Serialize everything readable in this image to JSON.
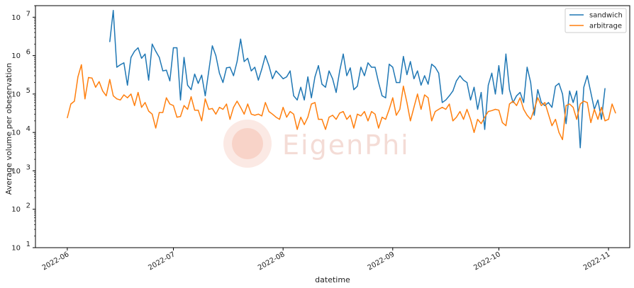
{
  "chart_data": {
    "type": "line",
    "title": "",
    "xlabel": "datetime",
    "ylabel": "Average volume per obeservation",
    "y_scale": "log",
    "xlim": [
      "2022-05-23",
      "2022-11-07"
    ],
    "ylim": [
      10,
      20000000
    ],
    "x_ticks": [
      {
        "date": "2022-06-01",
        "label": "2022-06"
      },
      {
        "date": "2022-07-01",
        "label": "2022-07"
      },
      {
        "date": "2022-08-01",
        "label": "2022-08"
      },
      {
        "date": "2022-09-01",
        "label": "2022-09"
      },
      {
        "date": "2022-10-01",
        "label": "2022-10"
      },
      {
        "date": "2022-11-01",
        "label": "2022-11"
      }
    ],
    "y_ticks": [
      {
        "value": 10,
        "base": "10",
        "exp": "1"
      },
      {
        "value": 100,
        "base": "10",
        "exp": "2"
      },
      {
        "value": 1000,
        "base": "10",
        "exp": "3"
      },
      {
        "value": 10000,
        "base": "10",
        "exp": "4"
      },
      {
        "value": 100000,
        "base": "10",
        "exp": "5"
      },
      {
        "value": 1000000,
        "base": "10",
        "exp": "6"
      },
      {
        "value": 10000000,
        "base": "10",
        "exp": "7"
      }
    ],
    "legend_position": "top-right",
    "grid": false,
    "watermark": "EigenPhi",
    "series": [
      {
        "name": "sandwich",
        "color": "#1f77b4",
        "start_date": "2022-06-13",
        "values": [
          2300000,
          15000000,
          500000,
          580000,
          650000,
          170000,
          900000,
          1300000,
          1600000,
          850000,
          1100000,
          230000,
          2000000,
          1300000,
          900000,
          400000,
          420000,
          220000,
          1600000,
          1600000,
          70000,
          900000,
          170000,
          130000,
          330000,
          190000,
          310000,
          90000,
          400000,
          1800000,
          1000000,
          350000,
          200000,
          480000,
          500000,
          300000,
          700000,
          2700000,
          700000,
          850000,
          400000,
          500000,
          230000,
          450000,
          1000000,
          550000,
          250000,
          400000,
          320000,
          250000,
          280000,
          400000,
          90000,
          70000,
          150000,
          70000,
          280000,
          80000,
          280000,
          550000,
          180000,
          150000,
          400000,
          250000,
          110000,
          400000,
          1100000,
          300000,
          480000,
          130000,
          160000,
          500000,
          300000,
          650000,
          500000,
          500000,
          200000,
          90000,
          80000,
          600000,
          500000,
          200000,
          200000,
          950000,
          320000,
          700000,
          250000,
          400000,
          170000,
          300000,
          180000,
          600000,
          500000,
          350000,
          60000,
          70000,
          90000,
          120000,
          220000,
          300000,
          230000,
          200000,
          70000,
          150000,
          40000,
          110000,
          12000,
          170000,
          350000,
          100000,
          550000,
          100000,
          1100000,
          130000,
          60000,
          90000,
          110000,
          60000,
          500000,
          200000,
          28000,
          130000,
          60000,
          50000,
          60000,
          45000,
          160000,
          190000,
          100000,
          17000,
          120000,
          60000,
          120000,
          4000,
          150000,
          300000,
          110000,
          40000,
          70000,
          22000,
          140000
        ]
      },
      {
        "name": "arbitrage",
        "color": "#ff7f0e",
        "start_date": "2022-06-01",
        "values": [
          24000,
          55000,
          65000,
          280000,
          580000,
          75000,
          270000,
          260000,
          150000,
          210000,
          120000,
          90000,
          240000,
          90000,
          75000,
          70000,
          95000,
          80000,
          100000,
          50000,
          110000,
          45000,
          60000,
          36000,
          30000,
          13000,
          33000,
          33000,
          80000,
          55000,
          50000,
          25000,
          26000,
          50000,
          40000,
          85000,
          38000,
          38000,
          20000,
          75000,
          40000,
          42000,
          30000,
          45000,
          40000,
          55000,
          22000,
          45000,
          65000,
          45000,
          30000,
          55000,
          30000,
          28000,
          30000,
          27000,
          60000,
          35000,
          30000,
          25000,
          22000,
          45000,
          25000,
          35000,
          30000,
          12000,
          25000,
          16000,
          25000,
          55000,
          60000,
          22000,
          22000,
          12000,
          25000,
          28000,
          22000,
          32000,
          35000,
          22000,
          28000,
          13000,
          30000,
          27000,
          35000,
          20000,
          35000,
          30000,
          13000,
          25000,
          22000,
          40000,
          80000,
          28000,
          40000,
          160000,
          60000,
          20000,
          45000,
          100000,
          40000,
          95000,
          80000,
          20000,
          35000,
          40000,
          45000,
          40000,
          55000,
          20000,
          25000,
          35000,
          22000,
          40000,
          22000,
          10000,
          22000,
          17000,
          25000,
          35000,
          37000,
          40000,
          38000,
          18000,
          15000,
          55000,
          65000,
          50000,
          80000,
          40000,
          28000,
          22000,
          40000,
          80000,
          50000,
          60000,
          30000,
          15000,
          22000,
          10000,
          6500,
          50000,
          55000,
          45000,
          22000,
          55000,
          65000,
          60000,
          18000,
          40000,
          22000,
          45000,
          20000,
          22000,
          55000,
          32000
        ]
      }
    ]
  }
}
